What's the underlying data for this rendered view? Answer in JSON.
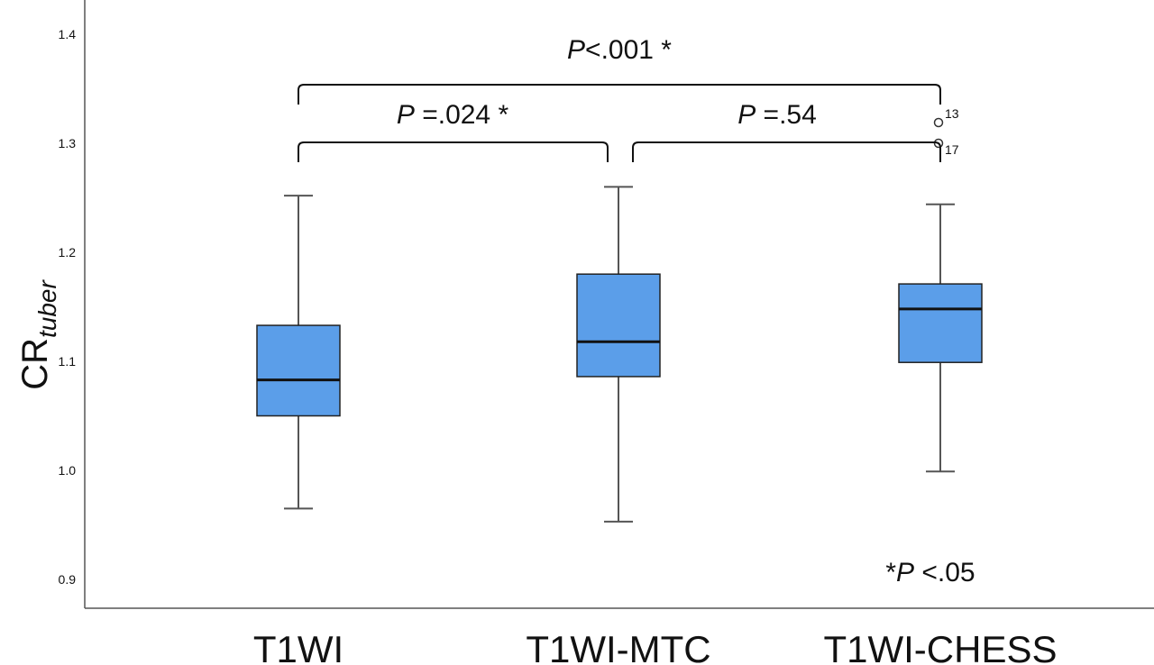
{
  "chart_data": {
    "type": "boxplot",
    "ylabel": {
      "main": "CR",
      "subscript": "tuber"
    },
    "ylim": [
      0.88,
      1.43
    ],
    "yticks": [
      "0.9",
      "1.0",
      "1.1",
      "1.2",
      "1.3",
      "1.4"
    ],
    "categories": [
      "T1WI",
      "T1WI-MTC",
      "T1WI-CHESS"
    ],
    "boxes": [
      {
        "category": "T1WI",
        "min": 0.965,
        "q1": 1.05,
        "median": 1.083,
        "q3": 1.133,
        "max": 1.252,
        "outliers": []
      },
      {
        "category": "T1WI-MTC",
        "min": 0.953,
        "q1": 1.086,
        "median": 1.118,
        "q3": 1.18,
        "max": 1.26,
        "outliers": []
      },
      {
        "category": "T1WI-CHESS",
        "min": 0.999,
        "q1": 1.099,
        "median": 1.148,
        "q3": 1.171,
        "max": 1.244,
        "outliers": [
          {
            "value": 1.319,
            "label": "13"
          },
          {
            "value": 1.3,
            "label": "17"
          }
        ]
      }
    ],
    "comparisons": [
      {
        "from": "T1WI",
        "to": "T1WI-CHESS",
        "p_italic": "P",
        "p_rest": "<.001 *"
      },
      {
        "from": "T1WI",
        "to": "T1WI-MTC",
        "p_italic": "P",
        "p_rest": " =.024 *"
      },
      {
        "from": "T1WI-MTC",
        "to": "T1WI-CHESS",
        "p_italic": "P",
        "p_rest": " =.54"
      }
    ],
    "footnote": {
      "prefix": "*",
      "italic": "P",
      "rest": " <.05"
    },
    "colors": {
      "box_fill": "#5b9ee9",
      "box_edge": "#222222",
      "whisker": "#555555",
      "axis": "#555555",
      "text": "#111111"
    }
  }
}
